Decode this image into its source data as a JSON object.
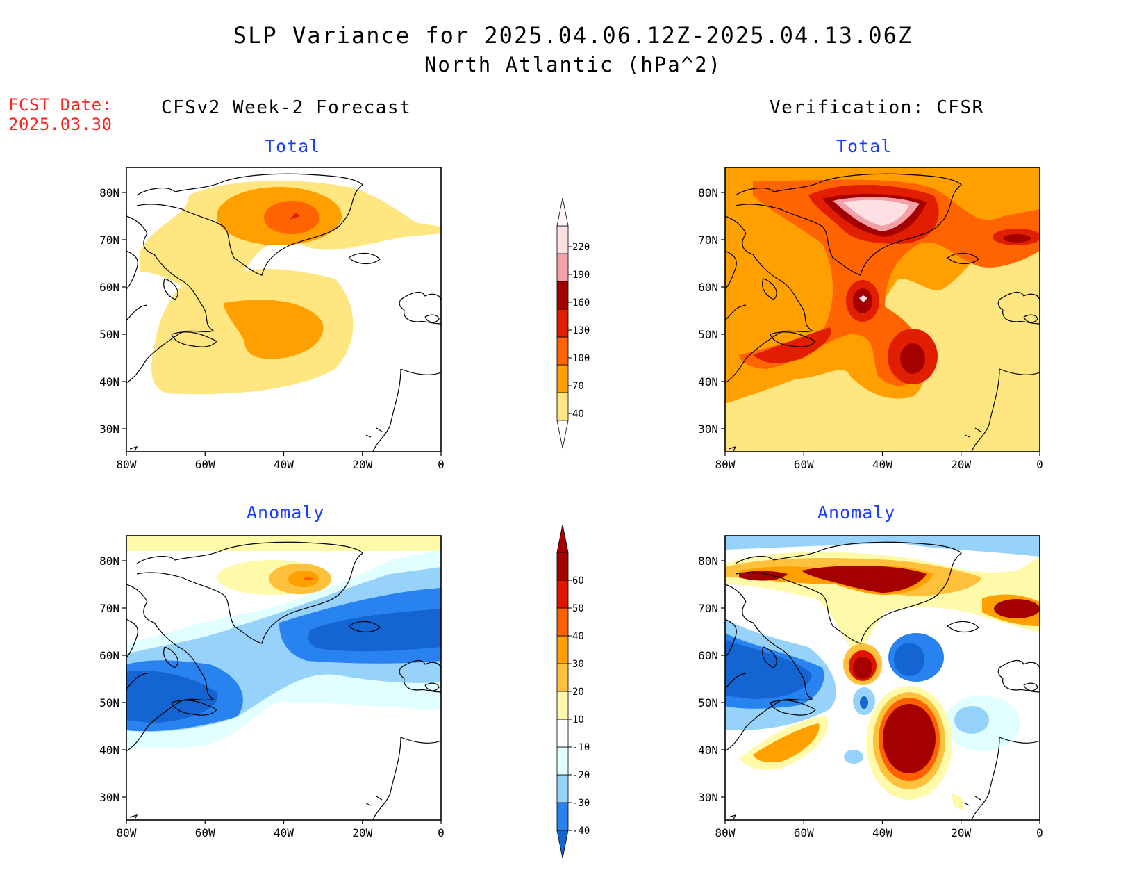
{
  "title_line1": "SLP Variance for 2025.04.06.12Z-2025.04.13.06Z",
  "title_line2": "North Atlantic (hPa^2)",
  "fcst_date_label": "FCST Date:",
  "fcst_date_value": "2025.03.30",
  "left_column_title": "CFSv2 Week-2 Forecast",
  "right_column_title": "Verification: CFSR",
  "panels": [
    {
      "id": "fcst-total",
      "subtitle": "Total"
    },
    {
      "id": "verif-total",
      "subtitle": "Total"
    },
    {
      "id": "fcst-anomaly",
      "subtitle": "Anomaly"
    },
    {
      "id": "verif-anomaly",
      "subtitle": "Anomaly"
    }
  ],
  "lat_ticks": [
    "80N",
    "70N",
    "60N",
    "50N",
    "40N",
    "30N"
  ],
  "lon_ticks": [
    "80W",
    "60W",
    "40W",
    "20W",
    "0"
  ],
  "total_colorbar": {
    "labels": [
      "40",
      "70",
      "100",
      "130",
      "160",
      "190",
      "220"
    ],
    "colors": [
      "#ffe680",
      "#ffa000",
      "#ff6400",
      "#e11e00",
      "#a50000",
      "#f4a0a8",
      "#fde0e4"
    ]
  },
  "anomaly_colorbar": {
    "labels": [
      "-40",
      "-30",
      "-20",
      "-10",
      "10",
      "20",
      "30",
      "40",
      "50",
      "60"
    ],
    "colors": [
      "#1464d2",
      "#2882f0",
      "#96d2fa",
      "#e1ffff",
      "#ffffff",
      "#fffaaa",
      "#ffc03c",
      "#ffa000",
      "#ff6000",
      "#e11400",
      "#a50000"
    ]
  },
  "palette": {
    "land_outline": "#000000",
    "total": {
      "c40": "#ffe680",
      "c70": "#ffa000",
      "c100": "#ff6400",
      "c130": "#e11e00",
      "c160": "#a50000",
      "c190": "#f4a0a8",
      "c220": "#fde0e4"
    },
    "anom": {
      "n40": "#1464d2",
      "n30": "#2882f0",
      "n20": "#96d2fa",
      "n10": "#e1ffff",
      "p10": "#fffaaa",
      "p20": "#ffc03c",
      "p30": "#ffa000",
      "p40": "#ff6000",
      "p50": "#e11400",
      "p60": "#a50000"
    }
  }
}
